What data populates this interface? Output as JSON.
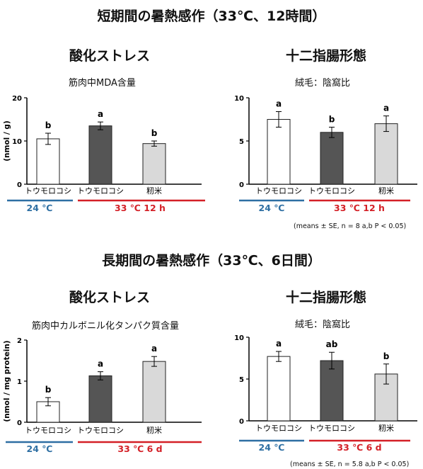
{
  "sections": [
    {
      "title": "短期間の暑熱感作（33℃、12時間）"
    },
    {
      "title": "長期間の暑熱感作（33℃、6日間）"
    }
  ],
  "colors": {
    "control": "#2e6fa3",
    "heat": "#d42027",
    "bar_white": "#ffffff",
    "bar_dark": "#555555",
    "bar_light": "#d9d9d9"
  },
  "chart_data": [
    {
      "type": "bar",
      "title": "酸化ストレス",
      "subtitle": "筋肉中MDA含量",
      "ylabel": "(nmol / g)",
      "ylim": [
        0,
        20
      ],
      "yticks": [
        "0",
        "10",
        "20"
      ],
      "categories": [
        "トウモロコシ",
        "トウモロコシ",
        "籾米"
      ],
      "values": [
        10.5,
        13.5,
        9.4
      ],
      "errors": [
        1.3,
        0.9,
        0.6
      ],
      "letters": [
        "b",
        "a",
        "b"
      ],
      "groups": [
        {
          "label": "24 ℃"
        },
        {
          "label": "33 ℃ 12 h"
        }
      ],
      "note": ""
    },
    {
      "type": "bar",
      "title": "十二指腸形態",
      "subtitle": "絨毛：陰窩比",
      "ylabel": "",
      "ylim": [
        0,
        10
      ],
      "yticks": [
        "0",
        "5",
        "10"
      ],
      "categories": [
        "トウモロコシ",
        "トウモロコシ",
        "籾米"
      ],
      "values": [
        7.5,
        6.0,
        7.0
      ],
      "errors": [
        0.9,
        0.6,
        0.9
      ],
      "letters": [
        "a",
        "b",
        "a"
      ],
      "groups": [
        {
          "label": "24 ℃"
        },
        {
          "label": "33 ℃ 12 h"
        }
      ],
      "note": "(means ± SE, n = 8 a,b P < 0.05)"
    },
    {
      "type": "bar",
      "title": "酸化ストレス",
      "subtitle": "筋肉中カルボニル化タンパク質含量",
      "ylabel": "(nmol / mg protein)",
      "ylim": [
        0,
        2
      ],
      "yticks": [
        "0",
        "1",
        "2"
      ],
      "categories": [
        "トウモロコシ",
        "トウモロコシ",
        "籾米"
      ],
      "values": [
        0.5,
        1.13,
        1.48
      ],
      "errors": [
        0.1,
        0.1,
        0.12
      ],
      "letters": [
        "b",
        "a",
        "a"
      ],
      "groups": [
        {
          "label": "24 ℃"
        },
        {
          "label": "33 ℃ 6 d"
        }
      ],
      "note": ""
    },
    {
      "type": "bar",
      "title": "十二指腸形態",
      "subtitle": "絨毛：陰窩比",
      "ylabel": "",
      "ylim": [
        0,
        10
      ],
      "yticks": [
        "0",
        "5",
        "10"
      ],
      "categories": [
        "トウモロコシ",
        "トウモロコシ",
        "籾米"
      ],
      "values": [
        7.7,
        7.2,
        5.6
      ],
      "errors": [
        0.6,
        1.0,
        1.2
      ],
      "letters": [
        "a",
        "ab",
        "b"
      ],
      "groups": [
        {
          "label": "24 ℃"
        },
        {
          "label": "33 ℃ 6 d"
        }
      ],
      "note": "(means ± SE, n = 5.8 a,b P < 0.05)"
    }
  ]
}
